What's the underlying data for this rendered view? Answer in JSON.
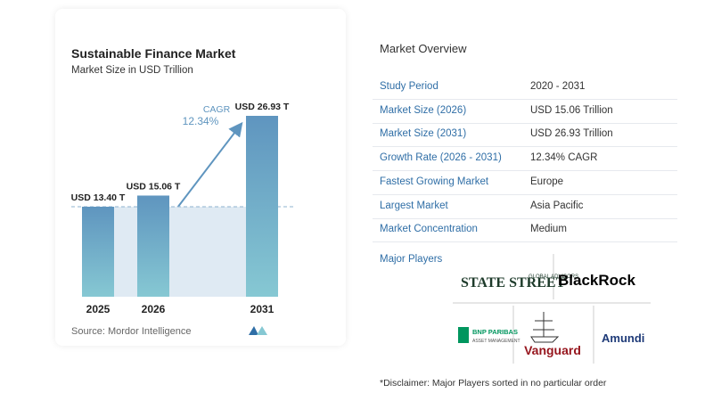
{
  "chart_data": {
    "type": "bar",
    "title": "Sustainable Finance Market",
    "subtitle": "Market Size in USD Trillion",
    "categories": [
      "2025",
      "2026",
      "2031"
    ],
    "values": [
      13.4,
      15.06,
      26.93
    ],
    "value_labels": [
      "USD 13.40 T",
      "USD 15.06 T",
      "USD 26.93 T"
    ],
    "color": "#5f95bf",
    "annotations": {
      "cagr_label": "CAGR",
      "cagr_value": "12.34%"
    },
    "source": "Source: Mordor Intelligence"
  },
  "overview": {
    "title": "Market Overview",
    "rows": [
      [
        "Study Period",
        "2020 - 2031"
      ],
      [
        "Market Size (2026)",
        "USD 15.06 Trillion"
      ],
      [
        "Market Size (2031)",
        "USD 26.93 Trillion"
      ],
      [
        "Growth Rate (2026 - 2031)",
        "12.34% CAGR"
      ],
      [
        "Fastest Growing Market",
        "Europe"
      ],
      [
        "Largest Market",
        "Asia Pacific"
      ],
      [
        "Market Concentration",
        "Medium"
      ]
    ]
  },
  "players": {
    "title": "Major Players",
    "logos": [
      "STATE STREET",
      "GLOBAL ADVISORS",
      "BlackRock",
      "BNP PARIBAS",
      "ASSET MANAGEMENT",
      "Vanguard",
      "Amundi"
    ]
  },
  "disclaimer": "*Disclaimer: Major Players sorted in no particular order"
}
